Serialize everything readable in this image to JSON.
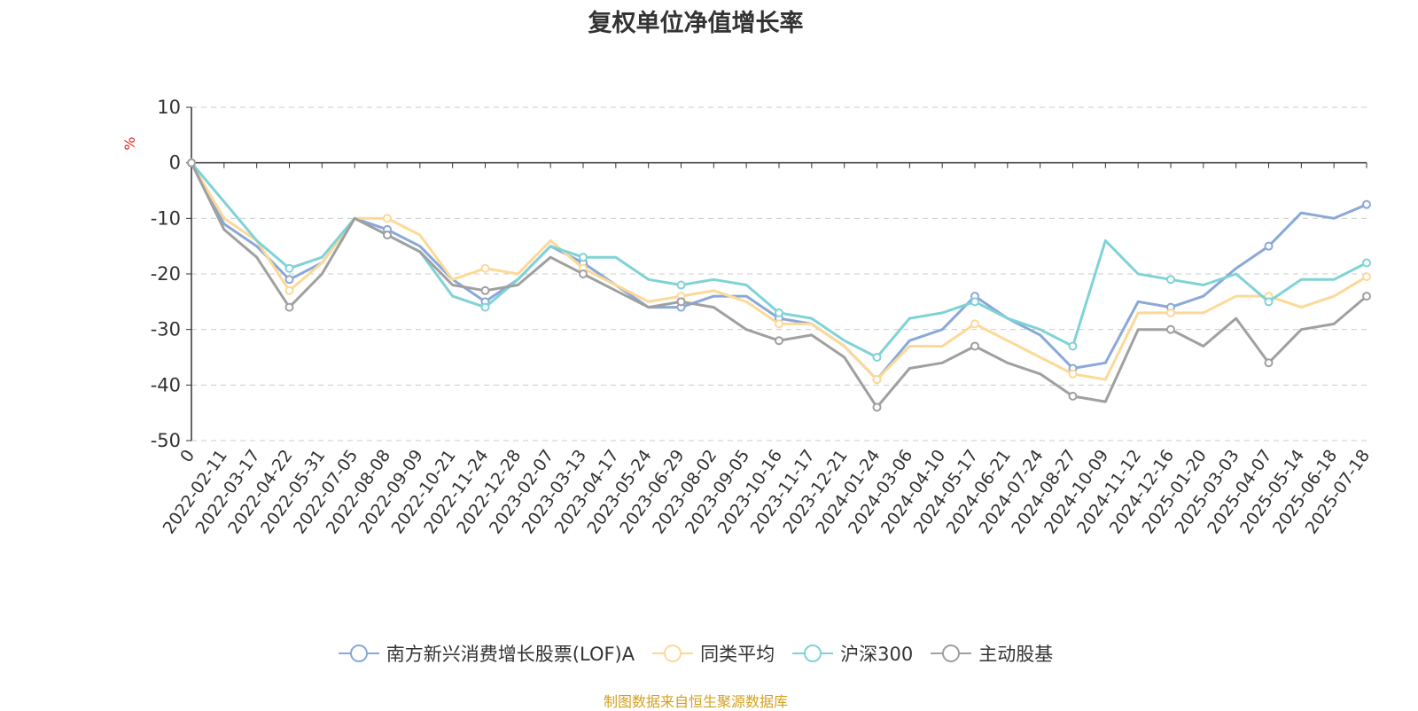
{
  "chart_data": {
    "type": "line",
    "title": "复权单位净值增长率",
    "ylabel": "%",
    "ylim": [
      -50,
      10
    ],
    "yticks": [
      10,
      0,
      -10,
      -20,
      -30,
      -40,
      -50
    ],
    "xlabels": [
      "0",
      "2022-02-11",
      "2022-03-17",
      "2022-04-22",
      "2022-05-31",
      "2022-07-05",
      "2022-08-08",
      "2022-09-09",
      "2022-10-21",
      "2022-11-24",
      "2022-12-28",
      "2023-02-07",
      "2023-03-13",
      "2023-04-17",
      "2023-05-24",
      "2023-06-29",
      "2023-08-02",
      "2023-09-05",
      "2023-10-16",
      "2023-11-17",
      "2023-12-21",
      "2024-01-24",
      "2024-03-06",
      "2024-04-10",
      "2024-05-17",
      "2024-06-21",
      "2024-07-24",
      "2024-08-27",
      "2024-10-09",
      "2024-11-12",
      "2024-12-16",
      "2025-01-20",
      "2025-03-03",
      "2025-04-07",
      "2025-05-14",
      "2025-06-18",
      "2025-07-18"
    ],
    "grid": true,
    "legend_position": "bottom",
    "series": [
      {
        "name": "南方新兴消费增长股票(LOF)A",
        "color": "#8aa8d8",
        "values": [
          0,
          -11,
          -15,
          -21,
          -18,
          -10,
          -12,
          -15,
          -21,
          -25,
          -21,
          -15,
          -18,
          -22,
          -26,
          -26,
          -24,
          -24,
          -28,
          -29,
          -33,
          -39,
          -32,
          -30,
          -24,
          -28,
          -31,
          -37,
          -36,
          -25,
          -26,
          -24,
          -19,
          -15,
          -9,
          -10,
          -7.5
        ]
      },
      {
        "name": "同类平均",
        "color": "#fcd997",
        "values": [
          0,
          -10,
          -14,
          -23,
          -18,
          -10,
          -10,
          -13,
          -21,
          -19,
          -20,
          -14,
          -19,
          -22,
          -25,
          -24,
          -23,
          -25,
          -29,
          -29,
          -33,
          -39,
          -33,
          -33,
          -29,
          -32,
          -35,
          -38,
          -39,
          -27,
          -27,
          -27,
          -24,
          -24,
          -26,
          -24,
          -20.5
        ]
      },
      {
        "name": "沪深300",
        "color": "#7fd3d6",
        "values": [
          0,
          -7,
          -14,
          -19,
          -17,
          -10,
          -13,
          -16,
          -24,
          -26,
          -21,
          -15,
          -17,
          -17,
          -21,
          -22,
          -21,
          -22,
          -27,
          -28,
          -32,
          -35,
          -28,
          -27,
          -25,
          -28,
          -30,
          -33,
          -14,
          -20,
          -21,
          -22,
          -20,
          -25,
          -21,
          -21,
          -18
        ]
      },
      {
        "name": "主动股基",
        "color": "#a0a0a0",
        "values": [
          0,
          -12,
          -17,
          -26,
          -20,
          -10,
          -13,
          -16,
          -22,
          -23,
          -22,
          -17,
          -20,
          -23,
          -26,
          -25,
          -26,
          -30,
          -32,
          -31,
          -35,
          -44,
          -37,
          -36,
          -33,
          -36,
          -38,
          -42,
          -43,
          -30,
          -30,
          -33,
          -28,
          -36,
          -30,
          -29,
          -24
        ]
      }
    ]
  },
  "source_text": "制图数据来自恒生聚源数据库"
}
